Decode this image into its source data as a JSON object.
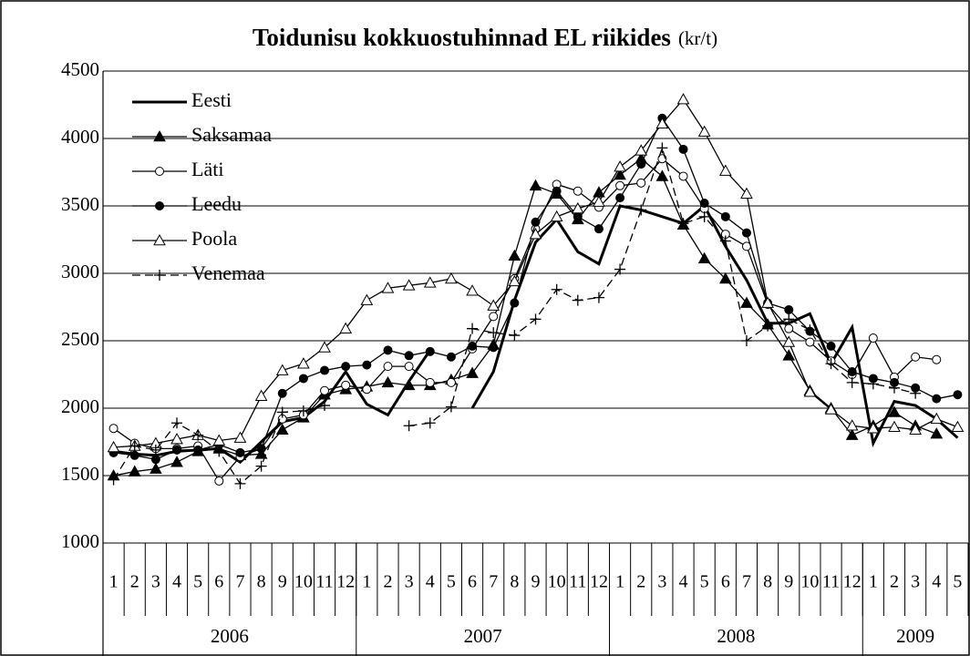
{
  "chart_data": {
    "type": "line",
    "title": "Toidunisu kokkuostuhinnad EL riikides",
    "unit": "(kr/t)",
    "categories": [
      "1",
      "2",
      "3",
      "4",
      "5",
      "6",
      "7",
      "8",
      "9",
      "10",
      "11",
      "12",
      "1",
      "2",
      "3",
      "4",
      "5",
      "6",
      "7",
      "8",
      "9",
      "10",
      "11",
      "12",
      "1",
      "2",
      "3",
      "4",
      "5",
      "6",
      "7",
      "8",
      "9",
      "10",
      "11",
      "12",
      "1",
      "2",
      "3",
      "4",
      "5"
    ],
    "year_labels": [
      "2006",
      "2007",
      "2008",
      "2009"
    ],
    "ylim": [
      1000,
      4500
    ],
    "yticks": [
      1000,
      1500,
      2000,
      2500,
      3000,
      3500,
      4000,
      4500
    ],
    "grid": true,
    "legend": "top-left",
    "series": [
      {
        "name": "Eesti",
        "color": "#000000",
        "marker": "none",
        "width": 3,
        "dash": false,
        "values": [
          1680,
          1660,
          1650,
          1680,
          1690,
          1700,
          1600,
          1750,
          1900,
          1930,
          2050,
          2270,
          2030,
          1950,
          2200,
          2430,
          null,
          2000,
          2270,
          2800,
          3230,
          3400,
          3160,
          3070,
          3500,
          3470,
          3420,
          3370,
          3500,
          3200,
          2950,
          2630,
          2630,
          2700,
          2330,
          2600,
          1740,
          2050,
          2020,
          1920,
          1780
        ]
      },
      {
        "name": "Saksamaa",
        "color": "#000000",
        "marker": "triangle-filled",
        "width": 1.3,
        "dash": false,
        "values": [
          1500,
          1530,
          1550,
          1600,
          1680,
          1700,
          1650,
          1660,
          1840,
          1930,
          2100,
          2140,
          2160,
          2190,
          2170,
          2170,
          2210,
          2260,
          2470,
          3130,
          3650,
          3590,
          3400,
          3600,
          3730,
          3850,
          3720,
          3360,
          3110,
          2960,
          2780,
          2620,
          2390,
          2130,
          2000,
          1800,
          1870,
          1970,
          1870,
          1810,
          null
        ]
      },
      {
        "name": "Läti",
        "color": "#000000",
        "marker": "circle-open",
        "width": 1.3,
        "dash": false,
        "values": [
          1850,
          1740,
          1700,
          1700,
          1720,
          1460,
          1640,
          1700,
          1920,
          1950,
          2130,
          2170,
          2140,
          2310,
          2310,
          2190,
          2190,
          2440,
          2680,
          2960,
          3330,
          3660,
          3610,
          3490,
          3650,
          3670,
          3850,
          3720,
          3480,
          3290,
          3200,
          2770,
          2590,
          2490,
          2350,
          2250,
          2520,
          2230,
          2380,
          2360,
          null
        ]
      },
      {
        "name": "Leedu",
        "color": "#000000",
        "marker": "circle-filled",
        "width": 1.3,
        "dash": false,
        "values": [
          1670,
          1650,
          1620,
          1690,
          1690,
          1730,
          1670,
          1700,
          2110,
          2220,
          2280,
          2310,
          2320,
          2430,
          2390,
          2420,
          2380,
          2460,
          2450,
          2780,
          3380,
          3610,
          3420,
          3330,
          3560,
          3810,
          4150,
          3920,
          3520,
          3420,
          3300,
          2780,
          2730,
          2570,
          2460,
          2270,
          2220,
          2190,
          2150,
          2070,
          2100
        ]
      },
      {
        "name": "Poola",
        "color": "#000000",
        "marker": "triangle-open",
        "width": 1.3,
        "dash": false,
        "values": [
          1710,
          1720,
          1740,
          1770,
          1800,
          1760,
          1780,
          2090,
          2280,
          2330,
          2450,
          2590,
          2800,
          2890,
          2910,
          2930,
          2960,
          2870,
          2760,
          2940,
          3290,
          3420,
          3480,
          3530,
          3790,
          3910,
          4110,
          4290,
          4050,
          3760,
          3590,
          2780,
          2490,
          2120,
          1990,
          1870,
          1850,
          1860,
          1840,
          1920,
          1860
        ]
      },
      {
        "name": "Venemaa",
        "color": "#000000",
        "marker": "plus",
        "width": 1.3,
        "dash": true,
        "values": [
          1470,
          1720,
          1690,
          1890,
          1800,
          1680,
          1440,
          1570,
          1970,
          1980,
          2020,
          null,
          null,
          null,
          1870,
          1890,
          2010,
          2590,
          2560,
          2540,
          2660,
          2880,
          2800,
          2820,
          3030,
          3470,
          3930,
          3370,
          3420,
          3240,
          2500,
          2610,
          2660,
          2580,
          2330,
          2190,
          2180,
          2150,
          2110,
          null,
          null
        ]
      }
    ]
  }
}
